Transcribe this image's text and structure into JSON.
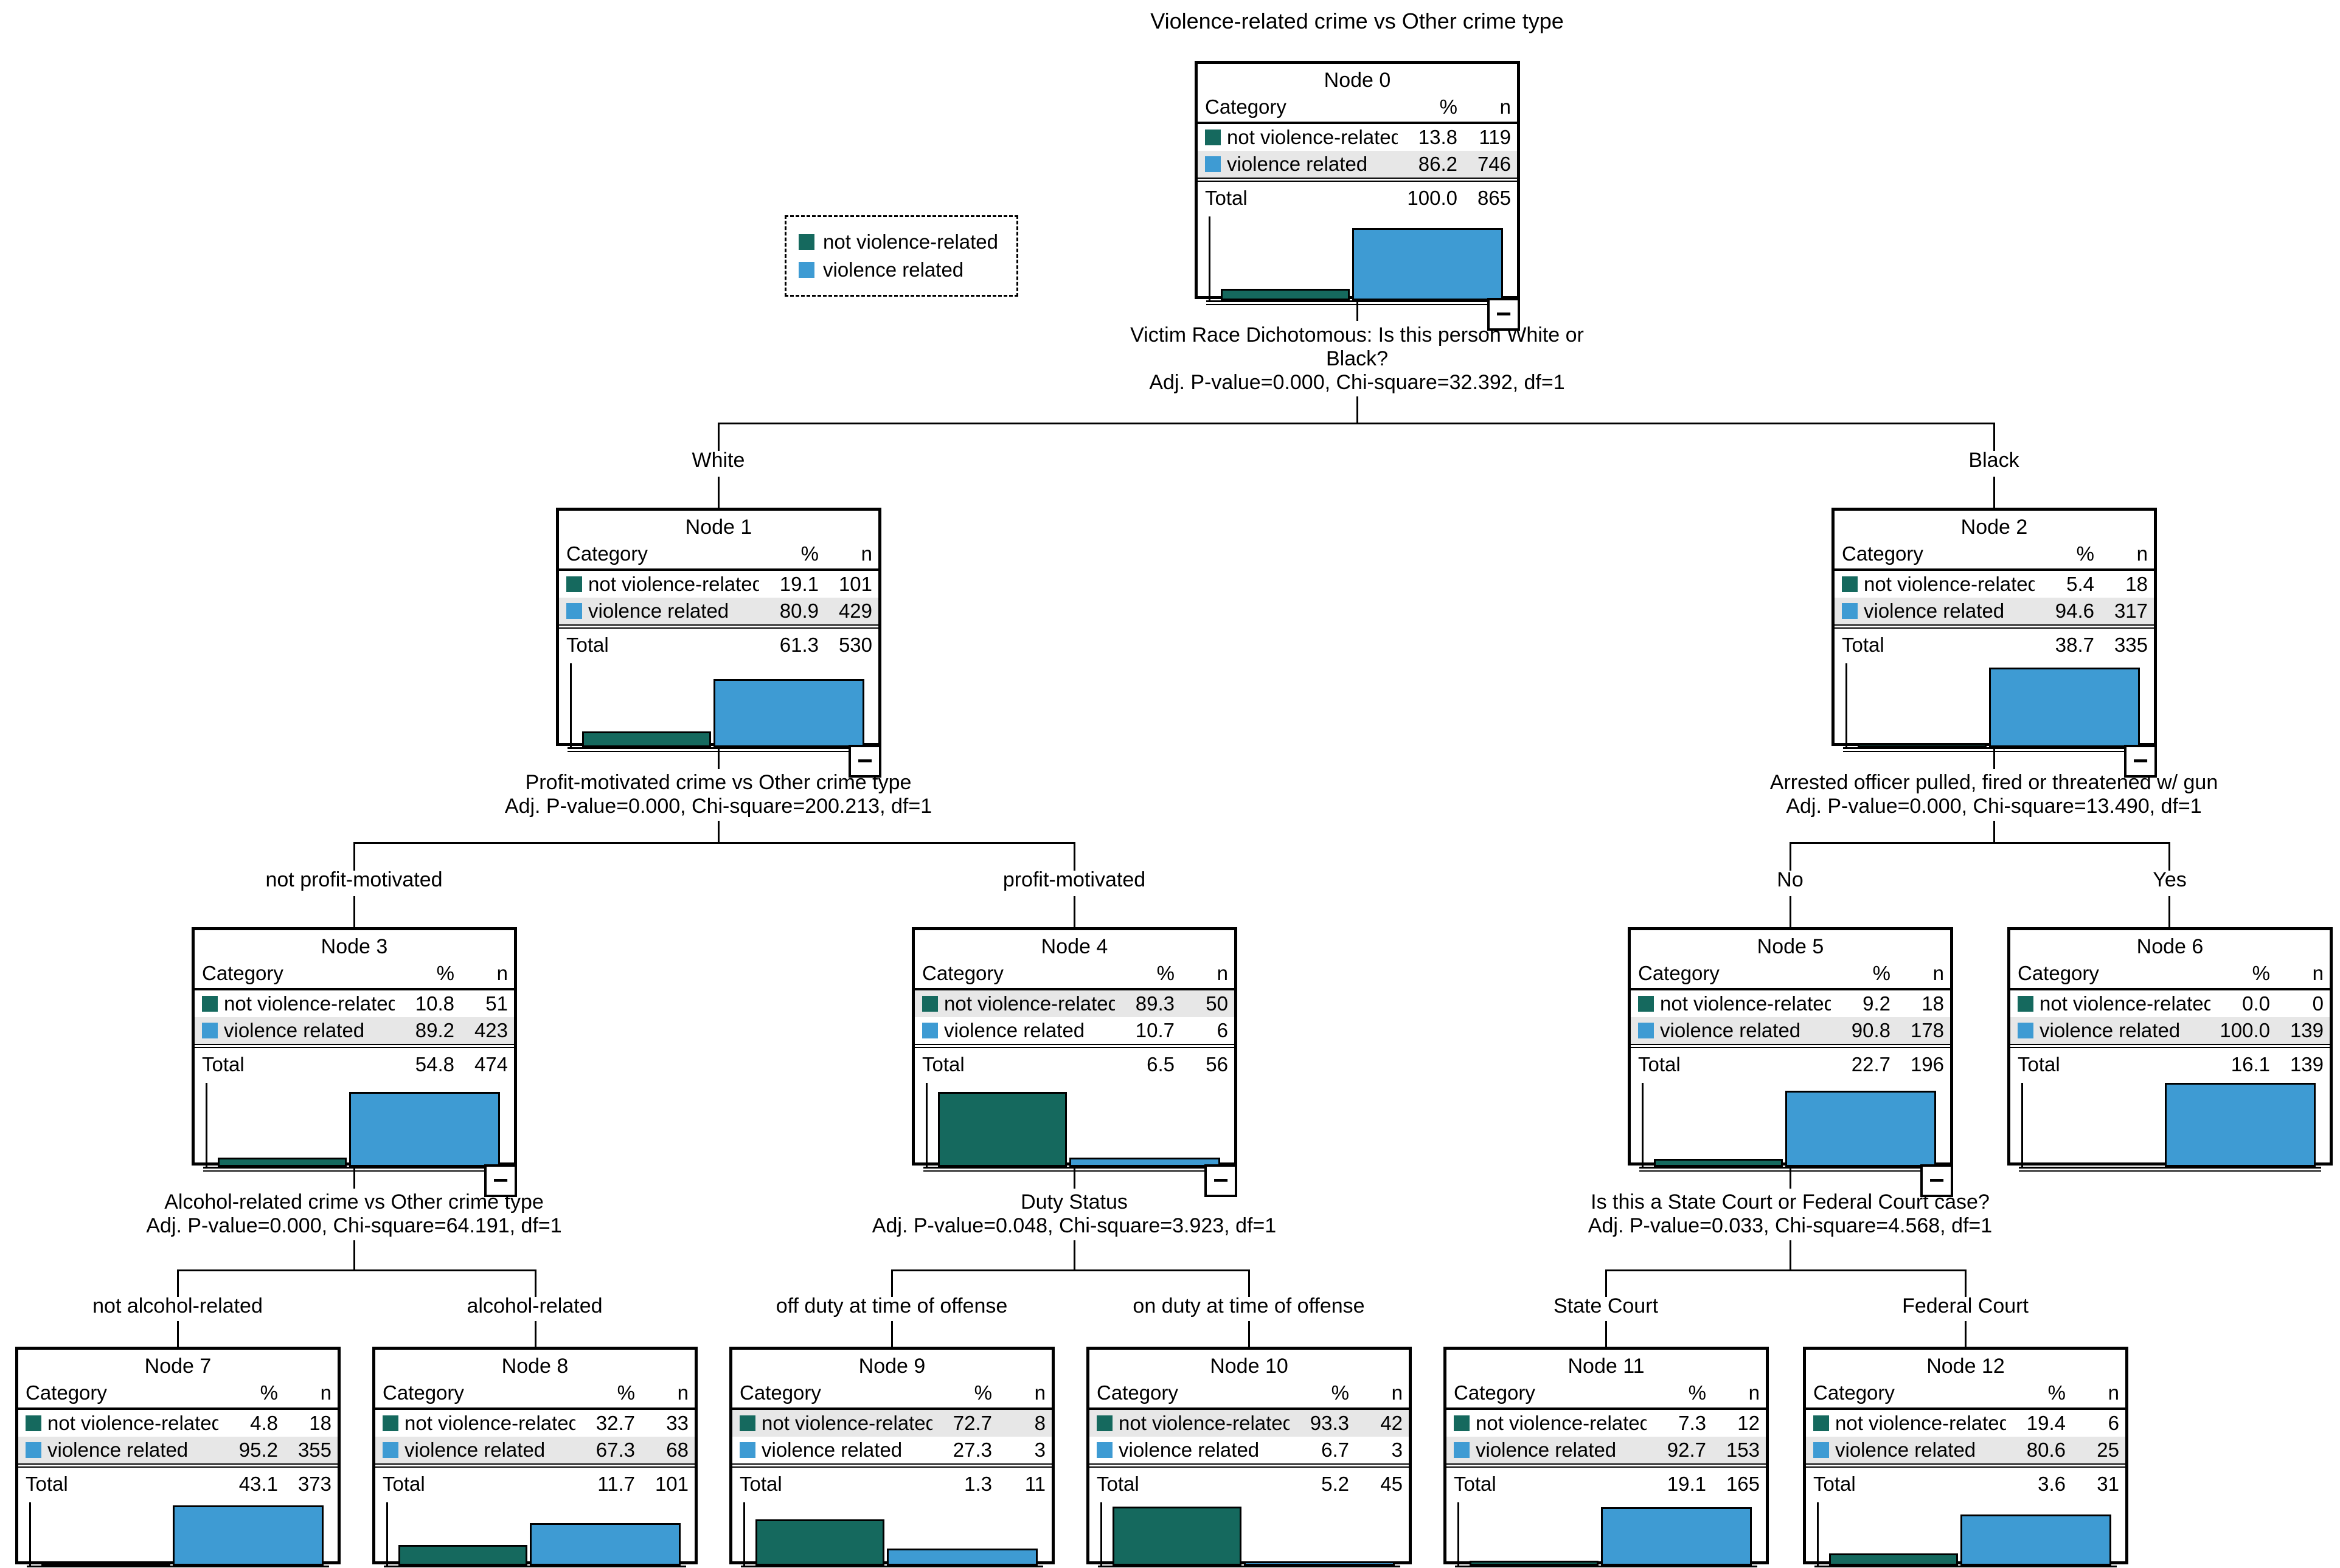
{
  "title": "Violence-related crime vs Other crime type",
  "labels": {
    "category": "Category",
    "pct": "%",
    "n": "n",
    "total": "Total",
    "collapse": "−"
  },
  "colors": {
    "not_violence_related": "#15695E",
    "violence_related": "#3E9BD3",
    "row_highlight": "#E7E7E7"
  },
  "legend": {
    "items": [
      {
        "label": "not violence-related"
      },
      {
        "label": "violence related"
      }
    ]
  },
  "nodes": [
    {
      "title": "Node 0",
      "branch_label": "",
      "rows": [
        {
          "label": "not violence-related",
          "pct": "13.8",
          "n": 119,
          "highlight": false
        },
        {
          "label": "violence related",
          "pct": "86.2",
          "n": 746,
          "highlight": true
        }
      ],
      "total": {
        "pct": "100.0",
        "n": 865
      },
      "has_children": true
    },
    {
      "title": "Node 1",
      "branch_label": "White",
      "rows": [
        {
          "label": "not violence-related",
          "pct": "19.1",
          "n": 101,
          "highlight": false
        },
        {
          "label": "violence related",
          "pct": "80.9",
          "n": 429,
          "highlight": true
        }
      ],
      "total": {
        "pct": "61.3",
        "n": 530
      },
      "has_children": true
    },
    {
      "title": "Node 2",
      "branch_label": "Black",
      "rows": [
        {
          "label": "not violence-related",
          "pct": "5.4",
          "n": 18,
          "highlight": false
        },
        {
          "label": "violence related",
          "pct": "94.6",
          "n": 317,
          "highlight": true
        }
      ],
      "total": {
        "pct": "38.7",
        "n": 335
      },
      "has_children": true
    },
    {
      "title": "Node 3",
      "branch_label": "not profit-motivated",
      "rows": [
        {
          "label": "not violence-related",
          "pct": "10.8",
          "n": 51,
          "highlight": false
        },
        {
          "label": "violence related",
          "pct": "89.2",
          "n": 423,
          "highlight": true
        }
      ],
      "total": {
        "pct": "54.8",
        "n": 474
      },
      "has_children": true
    },
    {
      "title": "Node 4",
      "branch_label": "profit-motivated",
      "rows": [
        {
          "label": "not violence-related",
          "pct": "89.3",
          "n": 50,
          "highlight": true
        },
        {
          "label": "violence related",
          "pct": "10.7",
          "n": 6,
          "highlight": false
        }
      ],
      "total": {
        "pct": "6.5",
        "n": 56
      },
      "has_children": true
    },
    {
      "title": "Node 5",
      "branch_label": "No",
      "rows": [
        {
          "label": "not violence-related",
          "pct": "9.2",
          "n": 18,
          "highlight": false
        },
        {
          "label": "violence related",
          "pct": "90.8",
          "n": 178,
          "highlight": true
        }
      ],
      "total": {
        "pct": "22.7",
        "n": 196
      },
      "has_children": true
    },
    {
      "title": "Node 6",
      "branch_label": "Yes",
      "rows": [
        {
          "label": "not violence-related",
          "pct": "0.0",
          "n": 0,
          "highlight": false
        },
        {
          "label": "violence related",
          "pct": "100.0",
          "n": 139,
          "highlight": true
        }
      ],
      "total": {
        "pct": "16.1",
        "n": 139
      },
      "has_children": false
    },
    {
      "title": "Node 7",
      "branch_label": "not alcohol-related",
      "rows": [
        {
          "label": "not violence-related",
          "pct": "4.8",
          "n": 18,
          "highlight": false
        },
        {
          "label": "violence related",
          "pct": "95.2",
          "n": 355,
          "highlight": true
        }
      ],
      "total": {
        "pct": "43.1",
        "n": 373
      },
      "has_children": false
    },
    {
      "title": "Node 8",
      "branch_label": "alcohol-related",
      "rows": [
        {
          "label": "not violence-related",
          "pct": "32.7",
          "n": 33,
          "highlight": false
        },
        {
          "label": "violence related",
          "pct": "67.3",
          "n": 68,
          "highlight": true
        }
      ],
      "total": {
        "pct": "11.7",
        "n": 101
      },
      "has_children": false
    },
    {
      "title": "Node 9",
      "branch_label": "off duty at time of offense",
      "rows": [
        {
          "label": "not violence-related",
          "pct": "72.7",
          "n": 8,
          "highlight": true
        },
        {
          "label": "violence related",
          "pct": "27.3",
          "n": 3,
          "highlight": false
        }
      ],
      "total": {
        "pct": "1.3",
        "n": 11
      },
      "has_children": false
    },
    {
      "title": "Node 10",
      "branch_label": "on duty at time of offense",
      "rows": [
        {
          "label": "not violence-related",
          "pct": "93.3",
          "n": 42,
          "highlight": true
        },
        {
          "label": "violence related",
          "pct": "6.7",
          "n": 3,
          "highlight": false
        }
      ],
      "total": {
        "pct": "5.2",
        "n": 45
      },
      "has_children": false
    },
    {
      "title": "Node 11",
      "branch_label": "State Court",
      "rows": [
        {
          "label": "not violence-related",
          "pct": "7.3",
          "n": 12,
          "highlight": false
        },
        {
          "label": "violence related",
          "pct": "92.7",
          "n": 153,
          "highlight": true
        }
      ],
      "total": {
        "pct": "19.1",
        "n": 165
      },
      "has_children": false
    },
    {
      "title": "Node 12",
      "branch_label": "Federal Court",
      "rows": [
        {
          "label": "not violence-related",
          "pct": "19.4",
          "n": 6,
          "highlight": false
        },
        {
          "label": "violence related",
          "pct": "80.6",
          "n": 25,
          "highlight": true
        }
      ],
      "total": {
        "pct": "3.6",
        "n": 31
      },
      "has_children": false
    }
  ],
  "splits": [
    {
      "question": "Victim Race Dichotomous: Is this person White or Black?",
      "stats": "Adj. P-value=0.000, Chi-square=32.392, df=1"
    },
    {
      "question": "Profit-motivated crime vs Other crime type",
      "stats": "Adj. P-value=0.000, Chi-square=200.213, df=1"
    },
    {
      "question": "Arrested officer pulled, fired or threatened w/ gun",
      "stats": "Adj. P-value=0.000, Chi-square=13.490, df=1"
    },
    {
      "question": "Alcohol-related crime vs Other crime type",
      "stats": "Adj. P-value=0.000, Chi-square=64.191, df=1"
    },
    {
      "question": "Duty Status",
      "stats": "Adj. P-value=0.048, Chi-square=3.923, df=1"
    },
    {
      "question": "Is this a State Court or Federal Court case?",
      "stats": "Adj. P-value=0.033, Chi-square=4.568, df=1"
    }
  ]
}
